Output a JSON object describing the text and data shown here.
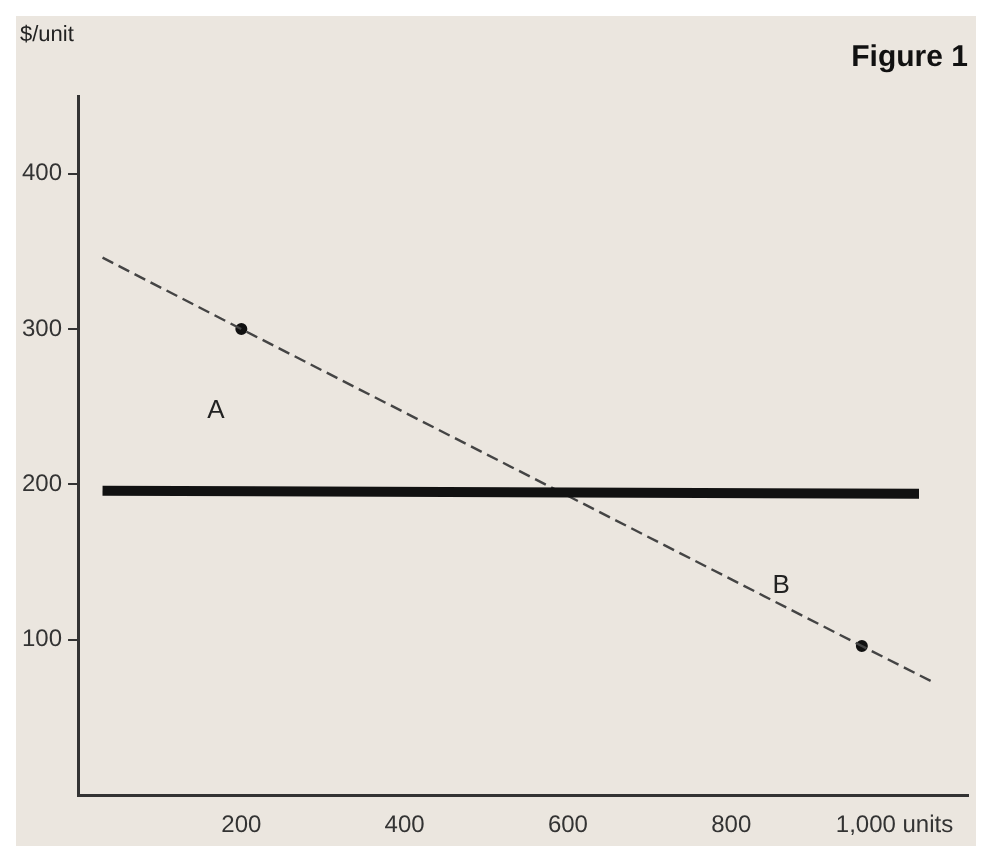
{
  "chart_data": {
    "type": "line",
    "title": "Figure 1",
    "ylabel": "$/unit",
    "xlim": [
      0,
      1090
    ],
    "ylim": [
      0,
      450
    ],
    "xticks": [
      200,
      400,
      600,
      800,
      {
        "value": 1000,
        "label": "1,000 units"
      }
    ],
    "yticks": [
      100,
      200,
      300,
      400
    ],
    "series": [
      {
        "type": "line",
        "color": "#111111",
        "x": [
          30,
          1030
        ],
        "values": [
          196,
          194
        ],
        "line_style": "solid",
        "marker": "none"
      },
      {
        "type": "line",
        "color": "#444444",
        "x": [
          30,
          200,
          960,
          1050
        ],
        "values": [
          346,
          300,
          96,
          72
        ],
        "line_style": "dashed",
        "marker": "none"
      },
      {
        "type": "scatter",
        "color": "#111111",
        "x": [
          200,
          960
        ],
        "values": [
          300,
          96
        ],
        "marker": "circle"
      }
    ],
    "annotations": [
      "A",
      "B"
    ],
    "grid": false,
    "legend": false
  }
}
